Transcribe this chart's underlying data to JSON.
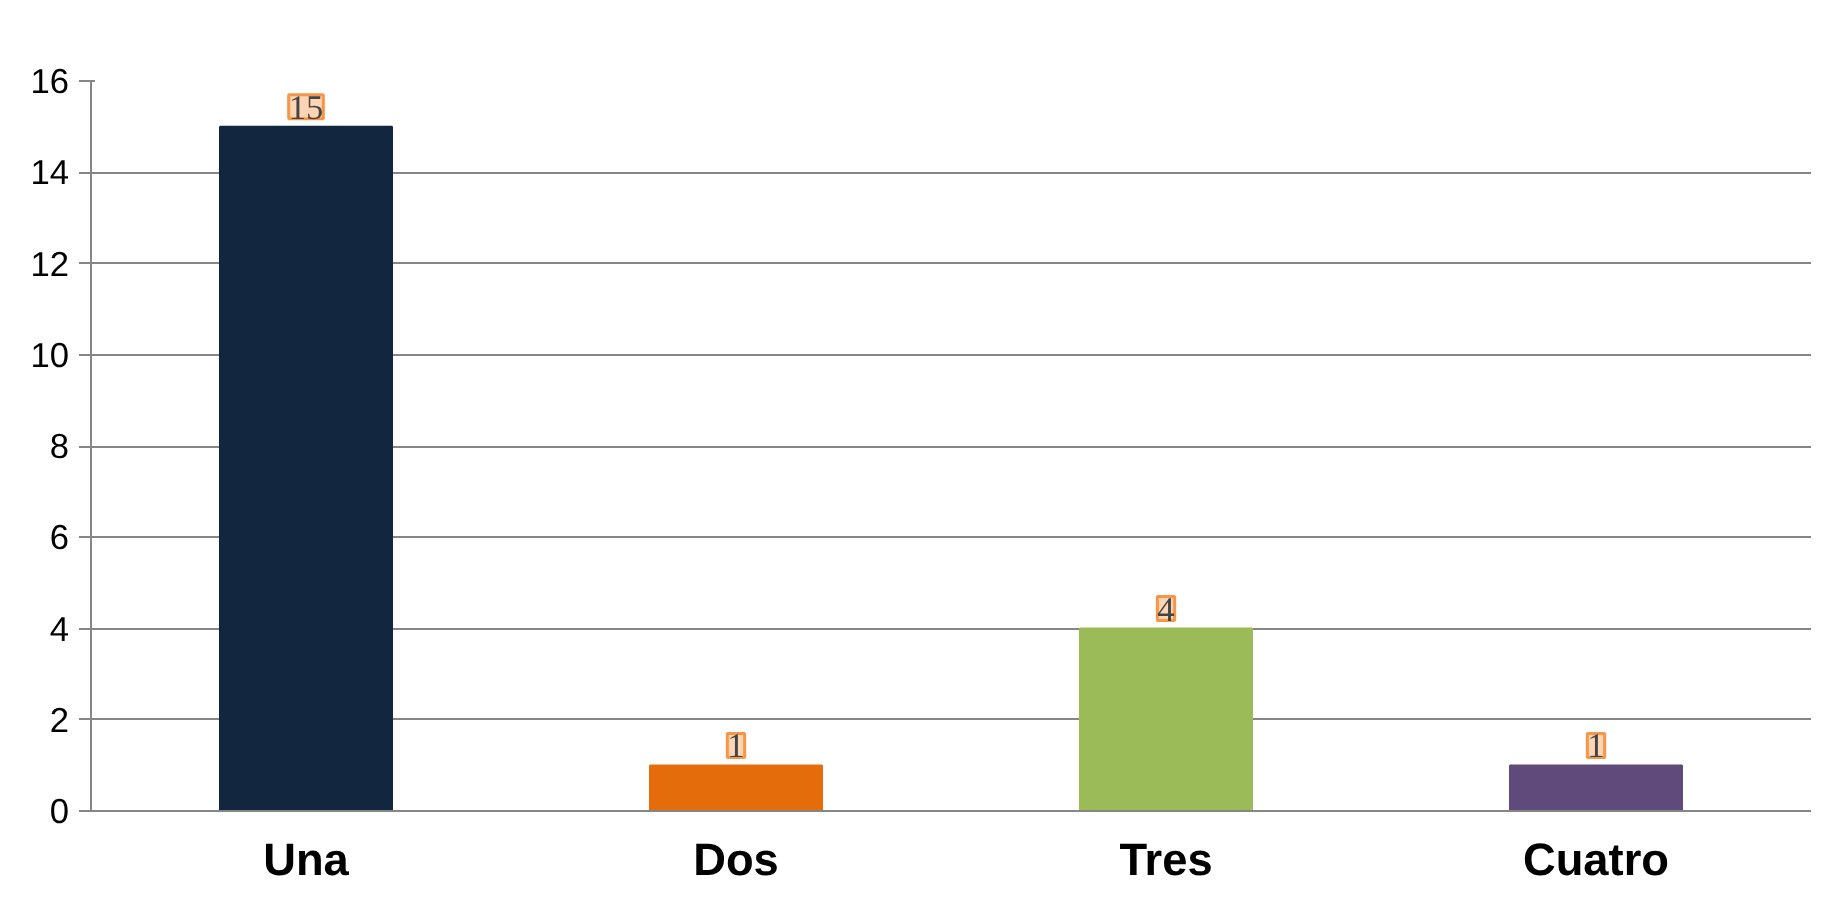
{
  "chart_data": {
    "type": "bar",
    "categories": [
      "Una",
      "Dos",
      "Tres",
      "Cuatro"
    ],
    "values": [
      15,
      1,
      4,
      1
    ],
    "colors": [
      "#13263f",
      "#e46c0a",
      "#9bbb59",
      "#604a7b"
    ],
    "ylim": [
      0,
      16
    ],
    "yticks": [
      0,
      2,
      4,
      6,
      8,
      10,
      12,
      14,
      16
    ],
    "grid": "y",
    "data_labels": true
  }
}
